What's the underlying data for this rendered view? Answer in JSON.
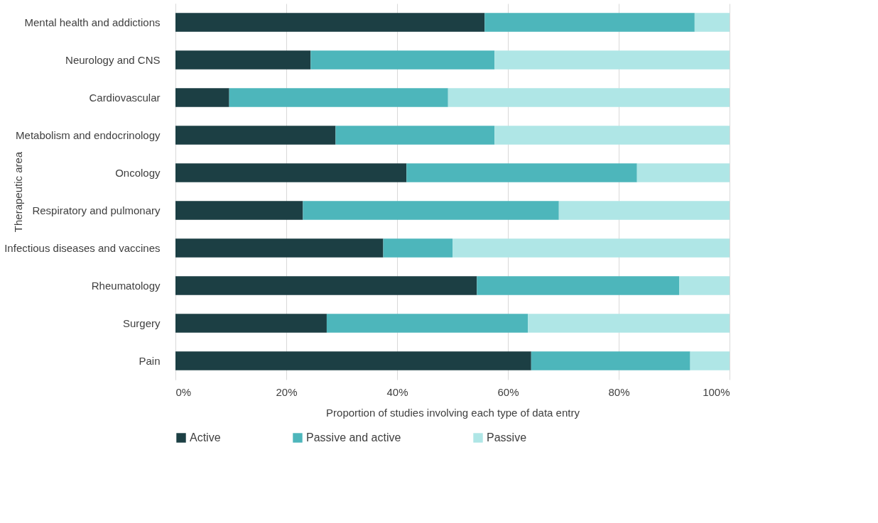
{
  "chart_data": {
    "type": "bar",
    "orientation": "horizontal",
    "stacked": true,
    "xlabel": "Proportion of studies involving each type of data entry",
    "ylabel": "Therapeutic area",
    "categories": [
      "Mental health and addictions",
      "Neurology and CNS",
      "Cardiovascular",
      "Metabolism and endocrinology",
      "Oncology",
      "Respiratory and pulmonary",
      "Infectious diseases and vaccines",
      "Rheumatology",
      "Surgery",
      "Pain"
    ],
    "series": [
      {
        "name": "Active",
        "color": "#1c3f44",
        "values": [
          55.8,
          24.4,
          9.7,
          28.9,
          41.7,
          23.0,
          37.5,
          54.4,
          27.3,
          64.2
        ]
      },
      {
        "name": "Passive and active",
        "color": "#4db6bb",
        "values": [
          37.9,
          33.2,
          39.5,
          28.7,
          41.6,
          46.2,
          12.5,
          36.5,
          36.3,
          28.7
        ]
      },
      {
        "name": "Passive",
        "color": "#afe6e6",
        "values": [
          6.3,
          42.4,
          50.8,
          42.4,
          16.7,
          30.8,
          50.0,
          9.1,
          36.4,
          7.1
        ]
      }
    ],
    "xlim": [
      0,
      100
    ],
    "xticks": [
      {
        "value": 0,
        "label": "0%"
      },
      {
        "value": 20,
        "label": "20%"
      },
      {
        "value": 40,
        "label": "40%"
      },
      {
        "value": 60,
        "label": "60%"
      },
      {
        "value": 80,
        "label": "80%"
      },
      {
        "value": 100,
        "label": "100%"
      }
    ],
    "grid": "x",
    "legend": "bottom"
  }
}
